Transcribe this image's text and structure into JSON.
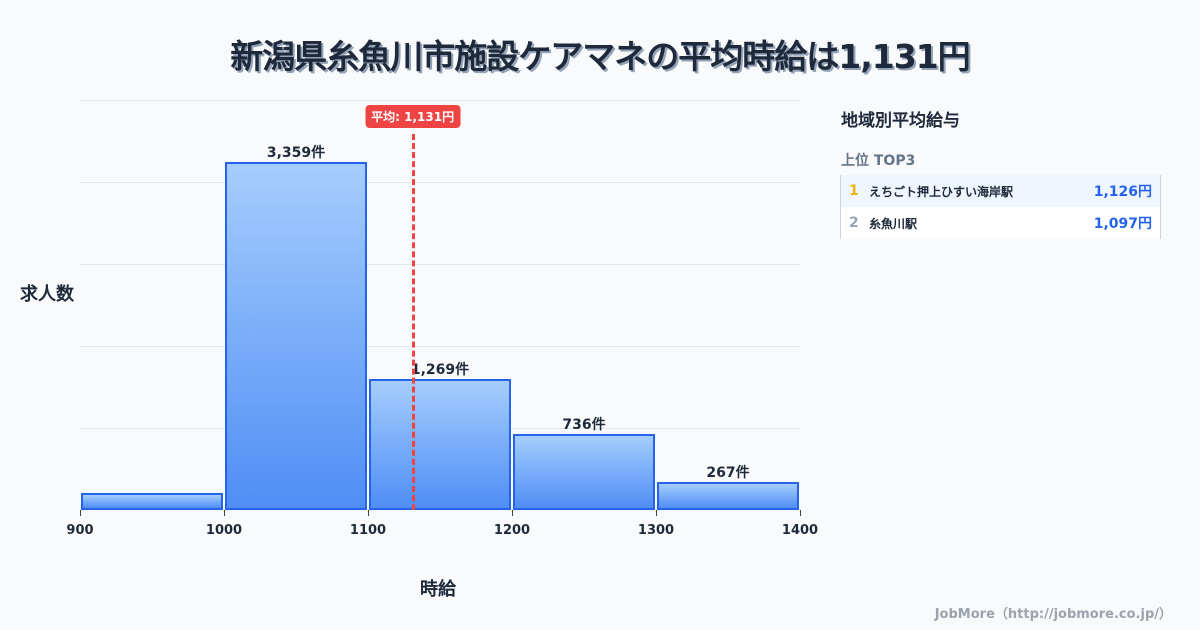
{
  "title": "新潟県糸魚川市施設ケアマネの平均時給は1,131円",
  "chart_data": {
    "type": "bar",
    "title": "新潟県糸魚川市施設ケアマネの平均時給は1,131円",
    "xlabel": "時給",
    "ylabel": "求人数",
    "categories": [
      "900-1000",
      "1000-1100",
      "1100-1200",
      "1200-1300",
      "1300-1400"
    ],
    "x_ticks": [
      "900",
      "1000",
      "1100",
      "1200",
      "1300",
      "1400"
    ],
    "values": [
      160,
      3359,
      1269,
      736,
      267
    ],
    "value_labels": [
      "",
      "3,359件",
      "1,269件",
      "736件",
      "267件"
    ],
    "xlim": [
      900,
      1400
    ],
    "ylim": [
      0,
      3960
    ],
    "grid": true,
    "mean": 1131,
    "mean_label": "平均: 1,131円",
    "colors": {
      "bar_border": "#2563eb",
      "bar_top": "#a5cdfd",
      "bar_bottom": "#4f8ef5",
      "mean_line": "#ef4444"
    }
  },
  "sidebar": {
    "title": "地域別平均給与",
    "subtitle": "上位 TOP3",
    "items": [
      {
        "rank": "1",
        "name": "えちごト押上ひすい海岸駅",
        "value": "1,126円",
        "rank_color": "#eab308"
      },
      {
        "rank": "2",
        "name": "糸魚川駅",
        "value": "1,097円",
        "rank_color": "#94a3b8"
      }
    ]
  },
  "footer": "JobMore（http://jobmore.co.jp/）"
}
